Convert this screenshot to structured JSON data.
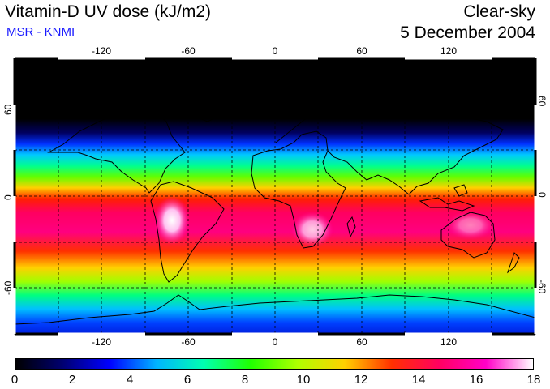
{
  "header": {
    "title": "Vitamin-D UV dose (kJ/m2)",
    "subtitle": "MSR - KNMI",
    "condition": "Clear-sky",
    "date": "5 December 2004"
  },
  "map": {
    "longitude_ticks": [
      "-120",
      "-60",
      "0",
      "60",
      "120"
    ],
    "latitude_ticks": [
      "60",
      "0",
      "-60"
    ],
    "longitude_range": [
      -180,
      180
    ],
    "latitude_range": [
      -90,
      90
    ],
    "gridlines": "dashed every 30 degrees"
  },
  "colorbar": {
    "labels": [
      "0",
      "2",
      "4",
      "6",
      "8",
      "10",
      "12",
      "14",
      "16",
      "18"
    ],
    "min": 0,
    "max": 18,
    "colors": [
      "#000000",
      "#000070",
      "#0000ff",
      "#00b4ff",
      "#00ffb0",
      "#20ff00",
      "#b0ff00",
      "#ffd000",
      "#ff3000",
      "#ff0060",
      "#ff00c8",
      "#ffffff"
    ]
  }
}
